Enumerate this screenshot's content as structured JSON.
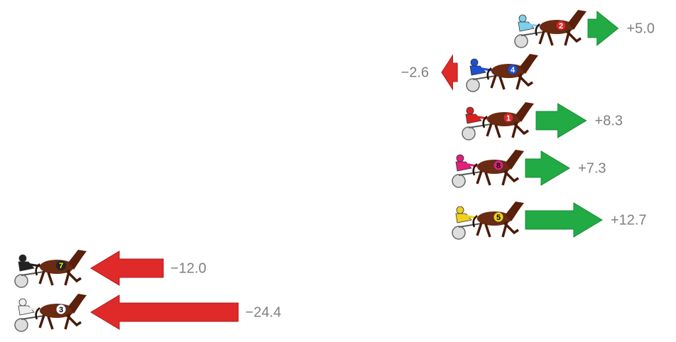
{
  "horses": [
    {
      "number": "2",
      "change": 5.0,
      "label": "+5.0"
    },
    {
      "number": "4",
      "change": -2.6,
      "label": "−2.6"
    },
    {
      "number": "1",
      "change": 8.3,
      "label": "+8.3"
    },
    {
      "number": "8",
      "change": 7.3,
      "label": "+7.3"
    },
    {
      "number": "5",
      "change": 12.7,
      "label": "+12.7"
    },
    {
      "number": "7",
      "change": -12.0,
      "label": "−12.0"
    },
    {
      "number": "3",
      "change": -24.4,
      "label": "−24.4"
    }
  ]
}
